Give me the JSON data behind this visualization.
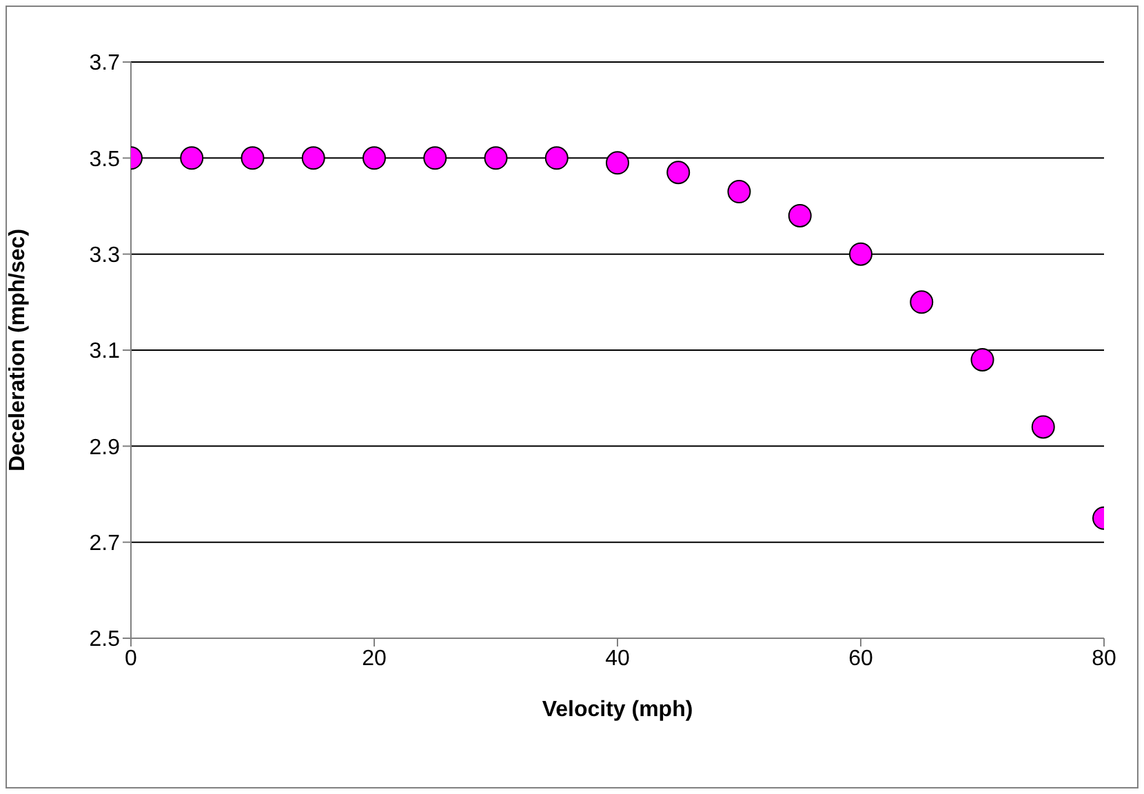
{
  "chart_data": {
    "type": "scatter",
    "xlabel": "Velocity (mph)",
    "ylabel": "Deceleration (mph/sec)",
    "x": [
      0,
      5,
      10,
      15,
      20,
      25,
      30,
      35,
      40,
      45,
      50,
      55,
      60,
      65,
      70,
      75,
      80
    ],
    "series": [
      {
        "color": "#ff00ff",
        "values": [
          3.5,
          3.5,
          3.5,
          3.5,
          3.5,
          3.5,
          3.5,
          3.5,
          3.49,
          3.47,
          3.43,
          3.38,
          3.3,
          3.2,
          3.08,
          2.94,
          2.75
        ]
      }
    ],
    "xlim": [
      0,
      80
    ],
    "xticks": [
      0,
      20,
      40,
      60,
      80
    ],
    "ylim": [
      2.5,
      3.7
    ],
    "yticks": [
      2.5,
      2.7,
      2.9,
      3.1,
      3.3,
      3.5,
      3.7
    ],
    "grid": "y",
    "legend": false,
    "marker": "circle"
  }
}
